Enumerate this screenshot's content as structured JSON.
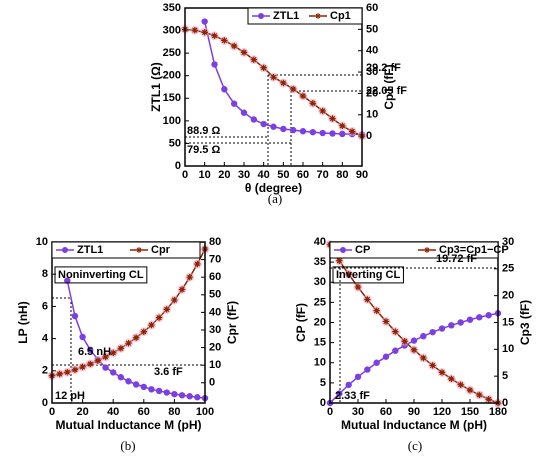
{
  "chart_data": [
    {
      "type": "line",
      "caption": "(a)",
      "x_label": "θ (degree)",
      "y_label": "ZTL1 (Ω)",
      "y2_label": "Cp1 (fF)",
      "x": [
        0,
        5,
        10,
        15,
        20,
        25,
        30,
        35,
        40,
        45,
        50,
        55,
        60,
        65,
        70,
        75,
        80,
        85,
        90
      ],
      "series": [
        {
          "name": "ZTL1",
          "color": "#7b3fe4",
          "marker": "circle",
          "values": [
            null,
            null,
            320,
            225,
            170,
            138,
            118,
            103,
            93,
            87,
            82,
            79.5,
            77,
            75,
            73,
            72,
            71,
            70.5,
            70
          ]
        },
        {
          "name": "Cp1",
          "color": "#8b2500",
          "marker": "star",
          "axis": "y2",
          "values": [
            50,
            49.6,
            48.6,
            47,
            44.8,
            42.2,
            39.2,
            35.8,
            32,
            27.6,
            24.9,
            22.05,
            18.8,
            15.4,
            11.8,
            8.2,
            4.8,
            2.2,
            0
          ]
        }
      ],
      "xlim": [
        0,
        90
      ],
      "xticks": [
        0,
        10,
        20,
        30,
        40,
        50,
        60,
        70,
        80,
        90
      ],
      "ylim": [
        0,
        350
      ],
      "yticks": [
        0,
        50,
        100,
        150,
        200,
        250,
        300,
        350
      ],
      "y2lim": [
        -14,
        60
      ],
      "y2ticks": [
        0,
        10,
        20,
        30,
        40,
        50,
        60
      ],
      "annotations": [
        "29.2 fF",
        "22.05 fF",
        "88.9 Ω",
        "79.5 Ω"
      ]
    },
    {
      "type": "line",
      "caption": "(b)",
      "x_label": "Mutual Inductance M (pH)",
      "y_label": "LP (nH)",
      "y2_label": "Cpr (fF)",
      "x": [
        0,
        5,
        10,
        15,
        20,
        25,
        30,
        35,
        40,
        45,
        50,
        55,
        60,
        65,
        70,
        75,
        80,
        85,
        90,
        95,
        100
      ],
      "series": [
        {
          "name": "ZTL1",
          "color": "#7b3fe4",
          "marker": "circle",
          "values": [
            null,
            null,
            7.6,
            5.4,
            4.1,
            3.3,
            2.7,
            2.2,
            1.9,
            1.6,
            1.35,
            1.15,
            1.0,
            0.85,
            0.75,
            0.65,
            0.55,
            0.48,
            0.42,
            0.36,
            0.3
          ]
        },
        {
          "name": "Cpr",
          "color": "#8b2500",
          "marker": "star",
          "axis": "y2",
          "values": [
            4,
            5,
            6,
            7.4,
            9,
            10.7,
            12.5,
            14.7,
            17,
            19.6,
            22.5,
            25.6,
            29,
            32.8,
            37,
            41.7,
            47,
            53,
            60,
            67.5,
            76
          ]
        }
      ],
      "xlim": [
        0,
        100
      ],
      "xticks": [
        0,
        20,
        40,
        60,
        80,
        100
      ],
      "ylim": [
        0,
        10
      ],
      "yticks": [
        0,
        2,
        4,
        6,
        8,
        10
      ],
      "y2lim": [
        -11.5,
        80
      ],
      "y2ticks": [
        0,
        10,
        20,
        30,
        40,
        50,
        60,
        70,
        80
      ],
      "annotations": [
        "Noninverting CL",
        "6.5 nH",
        "3.6 fF",
        "12 pH"
      ]
    },
    {
      "type": "line",
      "caption": "(c)",
      "x_label": "Mutual Inductance M (pH)",
      "y_label": "CP (fF)",
      "y2_label": "Cp3 (fF)",
      "x": [
        0,
        10,
        20,
        30,
        40,
        50,
        60,
        70,
        80,
        90,
        100,
        110,
        120,
        130,
        140,
        150,
        160,
        170,
        180
      ],
      "series": [
        {
          "name": "CP",
          "color": "#7b3fe4",
          "marker": "circle",
          "values": [
            0,
            2.33,
            4.5,
            6.5,
            8.3,
            10,
            11.5,
            13,
            14.3,
            15.5,
            16.6,
            17.6,
            18.5,
            19.3,
            20,
            20.7,
            21.3,
            21.8,
            22.3
          ]
        },
        {
          "name": "Cp3=Cp1−CP",
          "color": "#8b2500",
          "marker": "star",
          "axis": "y2",
          "values": [
            29.5,
            26.5,
            24,
            21.6,
            19.3,
            17.2,
            15.2,
            13.3,
            11.5,
            9.9,
            8.4,
            7,
            5.7,
            4.5,
            3.4,
            2.4,
            1.5,
            0.7,
            0
          ]
        }
      ],
      "xlim": [
        0,
        180
      ],
      "xticks": [
        0,
        30,
        60,
        90,
        120,
        150,
        180
      ],
      "ylim": [
        0,
        40
      ],
      "yticks": [
        0,
        5,
        10,
        15,
        20,
        25,
        30,
        35,
        40
      ],
      "y2lim": [
        0,
        30
      ],
      "y2ticks": [
        0,
        5,
        10,
        15,
        20,
        25,
        30
      ],
      "annotations": [
        "Inverting CL",
        "19.72 fF",
        "2.33 fF"
      ]
    }
  ]
}
